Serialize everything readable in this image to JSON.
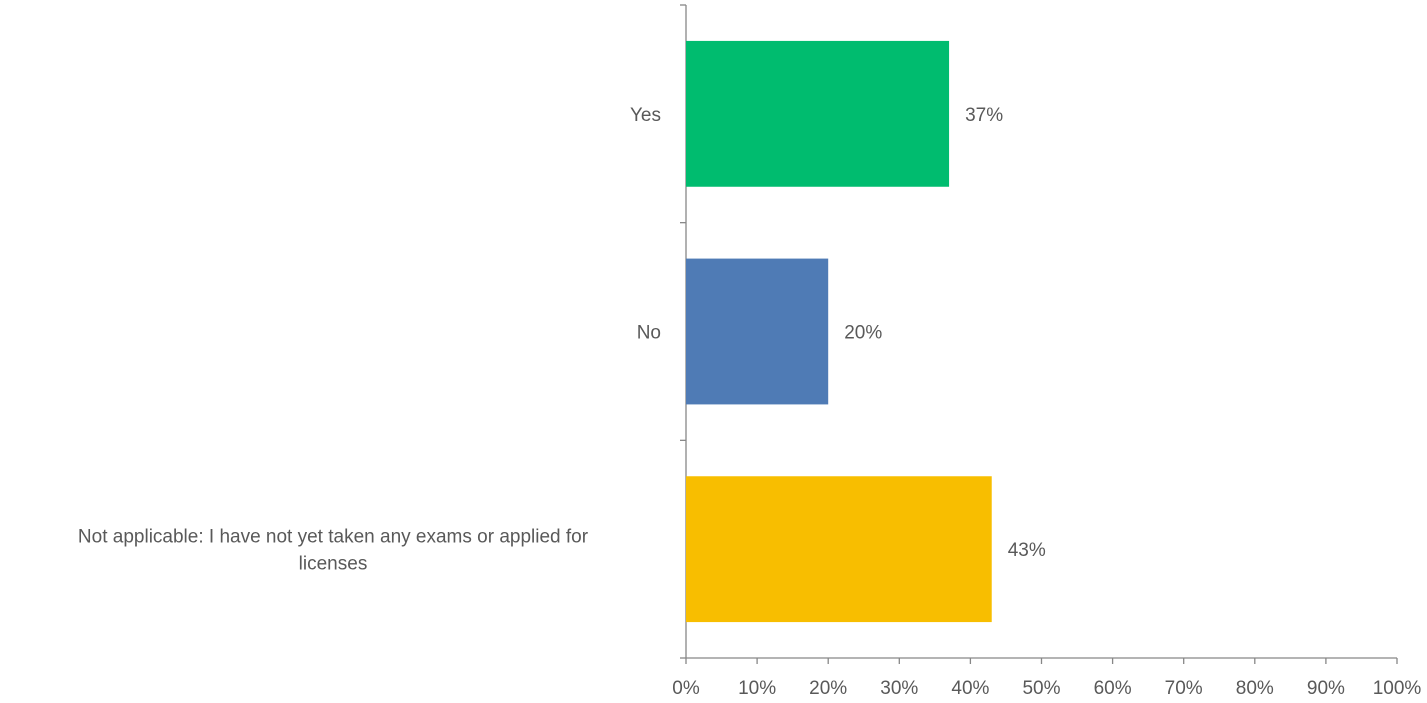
{
  "chart_data": {
    "type": "bar",
    "orientation": "horizontal",
    "categories": [
      "Yes",
      "No",
      "Not applicable: I have not yet taken any exams or applied for licenses"
    ],
    "category_label_lines": [
      [
        "Yes"
      ],
      [
        "No"
      ],
      [
        "Not applicable: I have not yet taken any exams or applied for",
        "licenses"
      ]
    ],
    "values": [
      37,
      20,
      43
    ],
    "data_labels": [
      "37%",
      "20%",
      "43%"
    ],
    "bar_colors": [
      "#00BC6F",
      "#4F7BB5",
      "#F8BE00"
    ],
    "xlim": [
      0,
      100
    ],
    "x_ticks": [
      0,
      10,
      20,
      30,
      40,
      50,
      60,
      70,
      80,
      90,
      100
    ],
    "x_tick_labels": [
      "0%",
      "10%",
      "20%",
      "30%",
      "40%",
      "50%",
      "60%",
      "70%",
      "80%",
      "90%",
      "100%"
    ],
    "title": "",
    "xlabel": "",
    "ylabel": "",
    "grid": false,
    "legend": "none"
  }
}
